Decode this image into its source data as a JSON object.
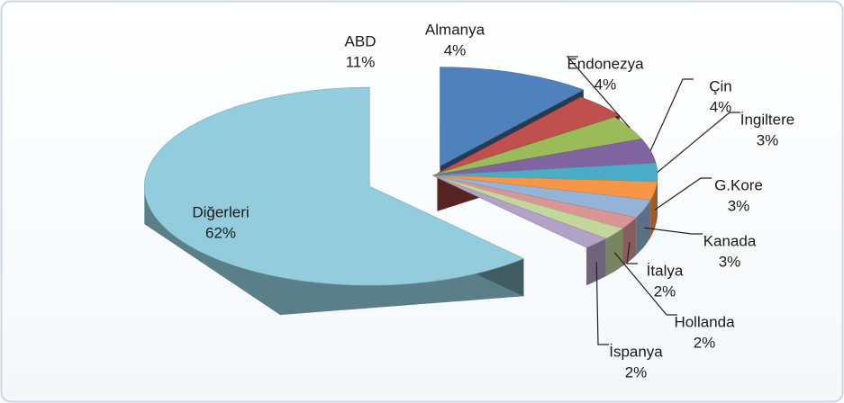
{
  "chart_data": {
    "type": "pie",
    "categories": [
      "ABD",
      "Almanya",
      "Endonezya",
      "Çin",
      "İngiltere",
      "G.Kore",
      "Kanada",
      "İtalya",
      "Hollanda",
      "İspanya",
      "Diğerleri"
    ],
    "values": [
      11,
      4,
      4,
      4,
      3,
      3,
      3,
      2,
      2,
      2,
      62
    ],
    "value_labels": [
      "11%",
      "4%",
      "4%",
      "4%",
      "3%",
      "3%",
      "3%",
      "2%",
      "2%",
      "2%",
      "62%"
    ],
    "colors": [
      "#4f81bd",
      "#c0504d",
      "#9bbb59",
      "#8064a2",
      "#4bacc6",
      "#f79646",
      "#95b3d7",
      "#d99694",
      "#c3d69b",
      "#b3a2c7",
      "#93cddd"
    ]
  }
}
